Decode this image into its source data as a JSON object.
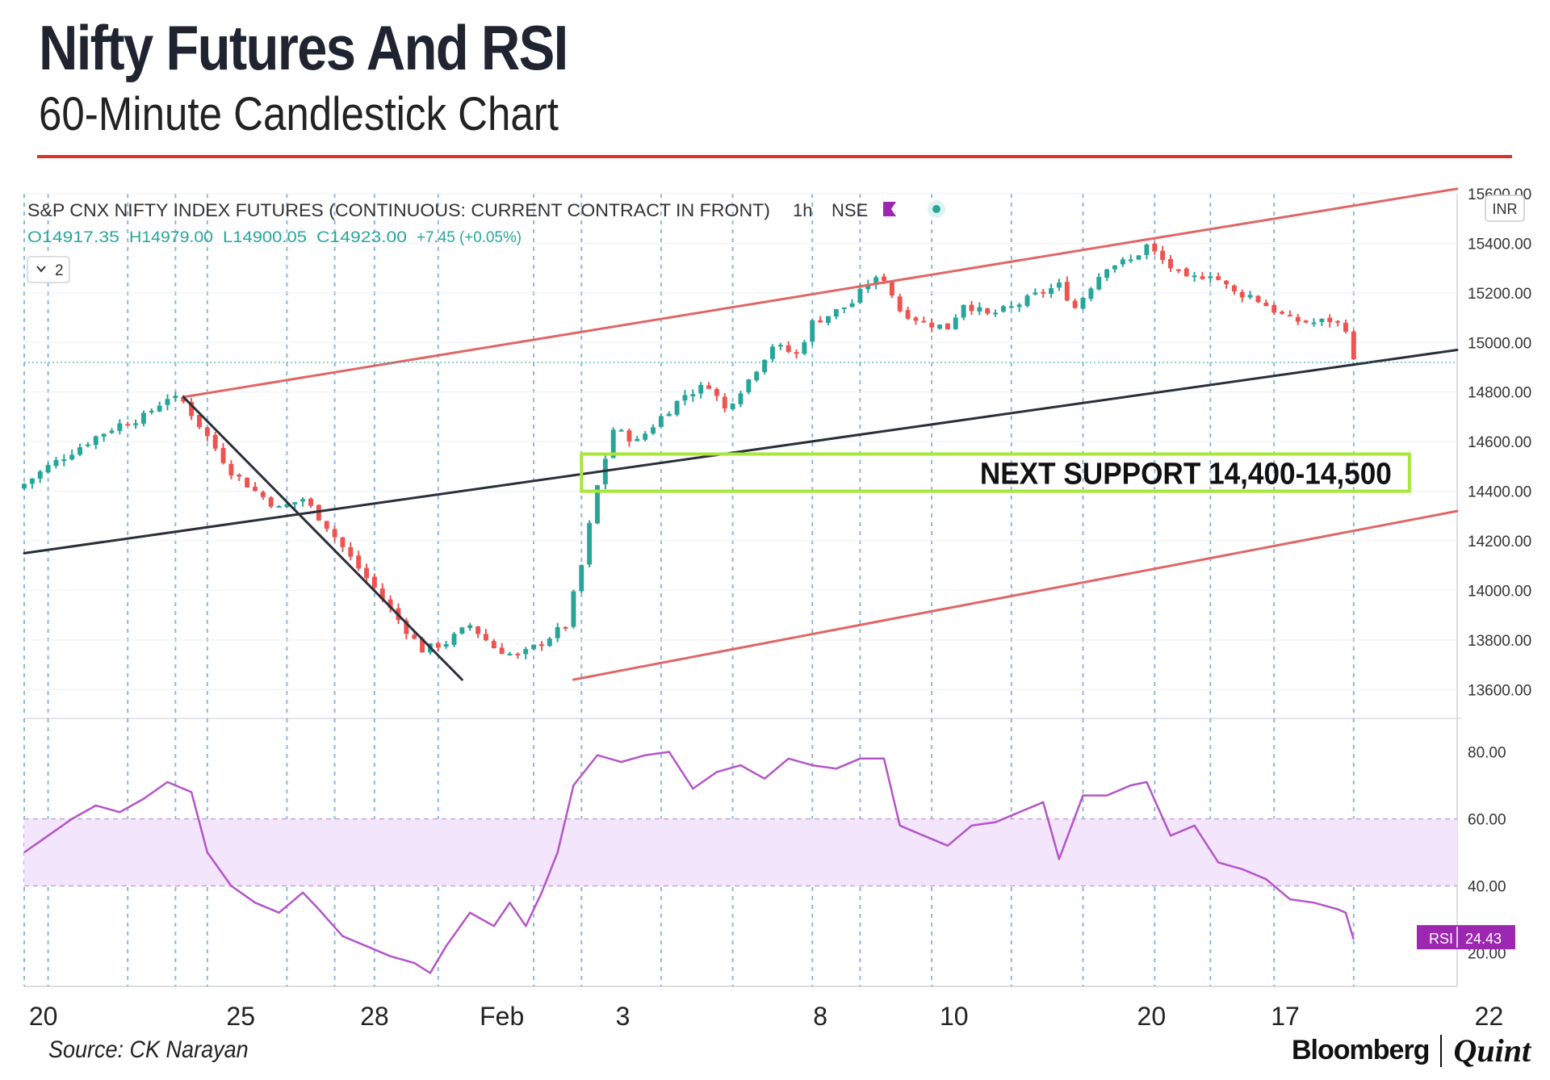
{
  "header": {
    "title": "Nifty Futures And RSI",
    "subtitle": "60-Minute Candlestick Chart"
  },
  "footer": {
    "source": "Source: CK Narayan",
    "brand_left": "Bloomberg",
    "brand_right": "Quint"
  },
  "colors": {
    "up": "#26a69a",
    "down": "#ef5350",
    "channel": "#e06666",
    "midline": "#2a2e39",
    "support_box": "#a8e63a",
    "rsi_line": "#b455c8",
    "rsi_band": "#f3e5fb",
    "rsi_badge": "#9c27b0",
    "grid_vertical": "#5b9bd5",
    "title_rule": "#d9342b"
  },
  "chart_data": [
    {
      "type": "candlestick",
      "instrument": "S&P CNX NIFTY INDEX FUTURES (CONTINUOUS: CURRENT CONTRACT IN FRONT)",
      "interval": "1h",
      "exchange": "NSE",
      "ohlc_line": {
        "open": "O14917.35",
        "high": "H14979.00",
        "low": "L14900.05",
        "close": "C14923.00",
        "change": "+7.45 (+0.05%)"
      },
      "indicator_toggle": "2",
      "currency": "INR",
      "ylim": [
        13500,
        15600
      ],
      "y_ticks": [
        15600,
        15400,
        15200,
        15000,
        14800,
        14600,
        14400,
        14200,
        14000,
        13800,
        13600
      ],
      "y_tick_labels": [
        "15600.00",
        "15400.00",
        "15200.00",
        "15000.00",
        "14800.00",
        "14600.00",
        "14400.00",
        "14200.00",
        "14000.00",
        "13800.00",
        "13600.00"
      ],
      "x_tick_labels": [
        "20",
        "25",
        "28",
        "Feb",
        "3",
        "8",
        "10",
        "20",
        "17",
        "22"
      ],
      "close_path": [
        [
          0,
          14430
        ],
        [
          3,
          14500
        ],
        [
          6,
          14560
        ],
        [
          9,
          14620
        ],
        [
          12,
          14670
        ],
        [
          15,
          14700
        ],
        [
          18,
          14780
        ],
        [
          20,
          14760
        ],
        [
          23,
          14620
        ],
        [
          26,
          14480
        ],
        [
          29,
          14400
        ],
        [
          32,
          14330
        ],
        [
          35,
          14370
        ],
        [
          38,
          14260
        ],
        [
          41,
          14130
        ],
        [
          44,
          14010
        ],
        [
          47,
          13880
        ],
        [
          50,
          13760
        ],
        [
          53,
          13790
        ],
        [
          56,
          13860
        ],
        [
          59,
          13770
        ],
        [
          62,
          13730
        ],
        [
          65,
          13790
        ],
        [
          68,
          13860
        ],
        [
          70,
          14100
        ],
        [
          72,
          14420
        ],
        [
          74,
          14650
        ],
        [
          77,
          14600
        ],
        [
          80,
          14700
        ],
        [
          83,
          14790
        ],
        [
          86,
          14830
        ],
        [
          88,
          14730
        ],
        [
          91,
          14850
        ],
        [
          94,
          14990
        ],
        [
          97,
          14950
        ],
        [
          99,
          15080
        ],
        [
          101,
          15110
        ],
        [
          104,
          15160
        ],
        [
          106,
          15240
        ],
        [
          108,
          15260
        ],
        [
          110,
          15130
        ],
        [
          113,
          15080
        ],
        [
          116,
          15060
        ],
        [
          118,
          15160
        ],
        [
          121,
          15110
        ],
        [
          124,
          15140
        ],
        [
          127,
          15190
        ],
        [
          130,
          15230
        ],
        [
          132,
          15140
        ],
        [
          134,
          15230
        ],
        [
          136,
          15310
        ],
        [
          139,
          15330
        ],
        [
          141,
          15390
        ],
        [
          143,
          15330
        ],
        [
          146,
          15250
        ],
        [
          149,
          15280
        ],
        [
          152,
          15200
        ],
        [
          154,
          15190
        ],
        [
          156,
          15150
        ],
        [
          159,
          15090
        ],
        [
          162,
          15080
        ],
        [
          164,
          15090
        ],
        [
          166,
          15060
        ],
        [
          167,
          14920
        ]
      ],
      "trendlines": [
        {
          "name": "channel-upper",
          "points": [
            [
              20,
              14780
            ],
            [
              180,
              15620
            ]
          ]
        },
        {
          "name": "channel-lower",
          "points": [
            [
              69,
              13640
            ],
            [
              180,
              14320
            ]
          ]
        },
        {
          "name": "median-line",
          "points": [
            [
              0,
              14150
            ],
            [
              180,
              14970
            ]
          ]
        },
        {
          "name": "decline-line",
          "points": [
            [
              20,
              14780
            ],
            [
              55,
              13640
            ]
          ]
        }
      ],
      "annotation": {
        "label": "NEXT SUPPORT 14,400-14,500",
        "range": [
          14400,
          14550
        ]
      }
    },
    {
      "type": "line",
      "name": "RSI",
      "ylim": [
        10,
        90
      ],
      "y_ticks": [
        80,
        60,
        40,
        20
      ],
      "y_tick_labels": [
        "80.00",
        "60.00",
        "40.00",
        "20.00"
      ],
      "band": [
        40,
        60
      ],
      "current_label": "RSI",
      "current_value": "24.43",
      "values": [
        [
          0,
          50
        ],
        [
          3,
          55
        ],
        [
          6,
          60
        ],
        [
          9,
          64
        ],
        [
          12,
          62
        ],
        [
          15,
          66
        ],
        [
          18,
          71
        ],
        [
          21,
          68
        ],
        [
          23,
          50
        ],
        [
          26,
          40
        ],
        [
          29,
          35
        ],
        [
          32,
          32
        ],
        [
          35,
          38
        ],
        [
          37,
          33
        ],
        [
          40,
          25
        ],
        [
          43,
          22
        ],
        [
          46,
          19
        ],
        [
          49,
          17
        ],
        [
          51,
          14
        ],
        [
          53,
          22
        ],
        [
          56,
          32
        ],
        [
          59,
          28
        ],
        [
          61,
          35
        ],
        [
          63,
          28
        ],
        [
          65,
          38
        ],
        [
          67,
          50
        ],
        [
          69,
          70
        ],
        [
          72,
          79
        ],
        [
          75,
          77
        ],
        [
          78,
          79
        ],
        [
          81,
          80
        ],
        [
          84,
          69
        ],
        [
          87,
          74
        ],
        [
          90,
          76
        ],
        [
          93,
          72
        ],
        [
          96,
          78
        ],
        [
          99,
          76
        ],
        [
          102,
          75
        ],
        [
          105,
          78
        ],
        [
          108,
          78
        ],
        [
          110,
          58
        ],
        [
          113,
          55
        ],
        [
          116,
          52
        ],
        [
          119,
          58
        ],
        [
          122,
          59
        ],
        [
          125,
          62
        ],
        [
          128,
          65
        ],
        [
          130,
          48
        ],
        [
          133,
          67
        ],
        [
          136,
          67
        ],
        [
          139,
          70
        ],
        [
          141,
          71
        ],
        [
          144,
          55
        ],
        [
          147,
          58
        ],
        [
          150,
          47
        ],
        [
          153,
          45
        ],
        [
          156,
          42
        ],
        [
          159,
          36
        ],
        [
          162,
          35
        ],
        [
          165,
          33
        ],
        [
          166,
          32
        ],
        [
          167,
          24
        ]
      ]
    }
  ]
}
